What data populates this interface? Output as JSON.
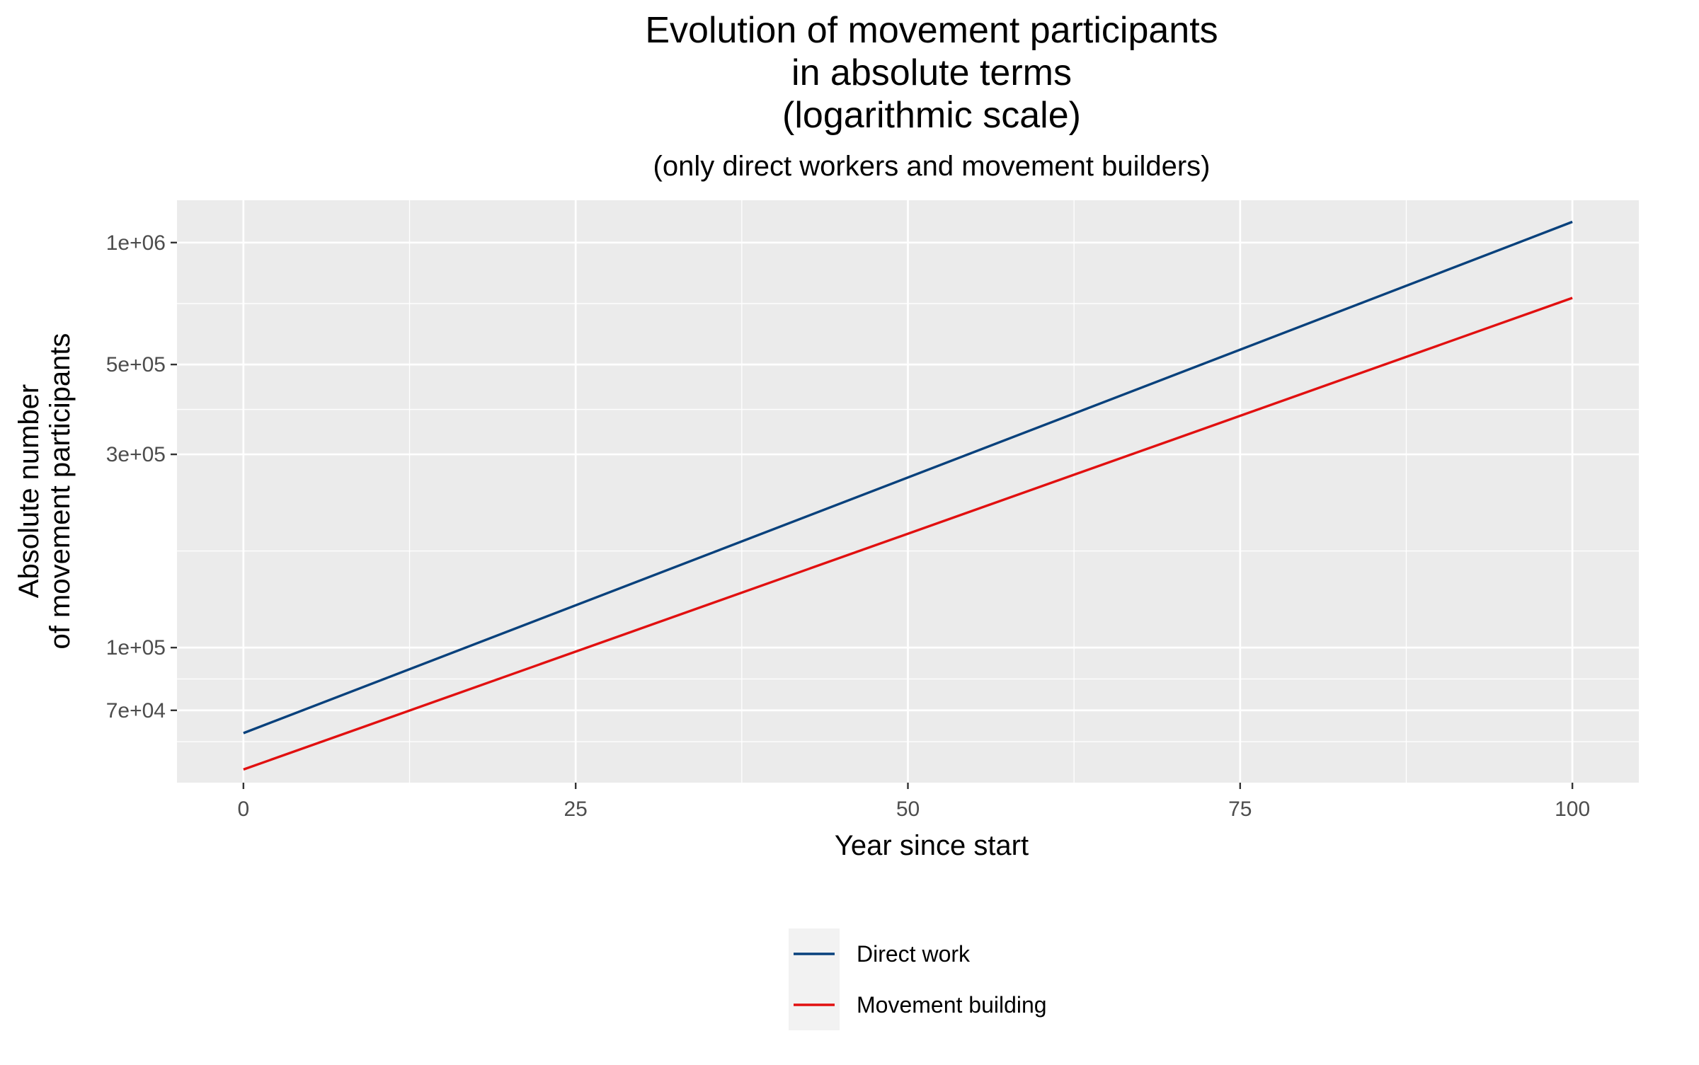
{
  "chart_data": {
    "type": "line",
    "title_lines": [
      "Evolution of movement participants",
      "in absolute terms",
      "(logarithmic scale)"
    ],
    "subtitle": "(only direct workers and movement builders)",
    "xlabel": "Year since start",
    "ylabel_lines": [
      "Absolute number",
      "of movement participants"
    ],
    "y_scale": "log",
    "x_ticks": [
      0,
      25,
      50,
      75,
      100
    ],
    "x_tick_labels": [
      "0",
      "25",
      "50",
      "75",
      "100"
    ],
    "y_ticks": [
      70000,
      100000,
      300000,
      500000,
      1000000
    ],
    "y_tick_labels": [
      "7e+04",
      "1e+05",
      "3e+05",
      "5e+05",
      "1e+06"
    ],
    "xlim": [
      -5,
      105
    ],
    "ylim": [
      46400,
      1272000
    ],
    "grid": true,
    "panel_background": "#ebebeb",
    "grid_color": "#ffffff",
    "legend_position": "bottom",
    "series": [
      {
        "name": "Direct work",
        "color": "#08417c",
        "x": [
          0,
          100
        ],
        "y": [
          61500,
          1125000
        ]
      },
      {
        "name": "Movement building",
        "color": "#e11010",
        "x": [
          0,
          100
        ],
        "y": [
          50000,
          730000
        ]
      }
    ]
  }
}
